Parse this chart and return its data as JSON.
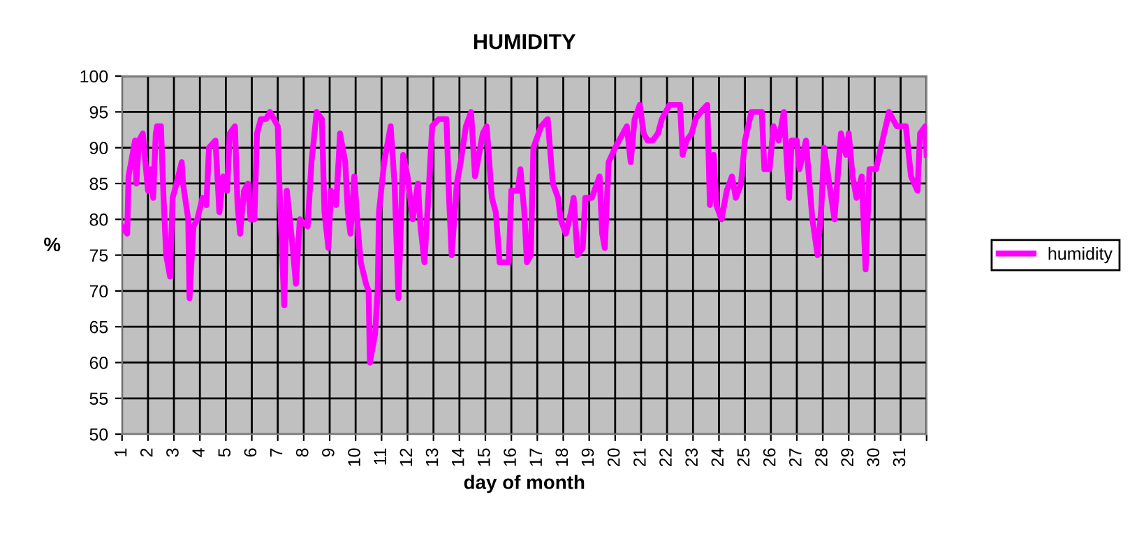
{
  "chart_data": {
    "type": "line",
    "title": "HUMIDITY",
    "xlabel": "day of month",
    "ylabel": "%",
    "xlim": [
      1,
      32
    ],
    "xticks": [
      1,
      2,
      3,
      4,
      5,
      6,
      7,
      8,
      9,
      10,
      11,
      12,
      13,
      14,
      15,
      16,
      17,
      18,
      19,
      20,
      21,
      22,
      23,
      24,
      25,
      26,
      27,
      28,
      29,
      30,
      31,
      {
        "value": 32,
        "label": null
      }
    ],
    "ylim": [
      50,
      100
    ],
    "yticks": [
      50,
      55,
      60,
      65,
      70,
      75,
      80,
      85,
      90,
      95,
      100
    ],
    "grid": true,
    "legend": "right",
    "marker": "none",
    "line_style": "solid",
    "series": [
      {
        "name": "humidity",
        "color": "#ff00ff",
        "x": [
          1.0,
          1.2,
          1.25,
          1.4,
          1.5,
          1.55,
          1.65,
          1.8,
          1.9,
          2.0,
          2.1,
          2.2,
          2.3,
          2.35,
          2.5,
          2.6,
          2.7,
          2.85,
          2.95,
          3.1,
          3.3,
          3.35,
          3.55,
          3.6,
          3.75,
          3.9,
          4.1,
          4.25,
          4.35,
          4.6,
          4.75,
          4.9,
          5.05,
          5.15,
          5.35,
          5.45,
          5.55,
          5.7,
          5.85,
          5.95,
          6.1,
          6.2,
          6.35,
          6.55,
          6.7,
          7.0,
          7.05,
          7.25,
          7.35,
          7.55,
          7.7,
          7.85,
          8.15,
          8.3,
          8.5,
          8.7,
          8.8,
          8.95,
          9.05,
          9.25,
          9.4,
          9.6,
          9.7,
          9.8,
          9.95,
          10.1,
          10.2,
          10.4,
          10.5,
          10.55,
          10.75,
          10.85,
          10.9,
          11.1,
          11.35,
          11.5,
          11.65,
          11.83,
          12.0,
          12.2,
          12.4,
          12.5,
          12.65,
          12.8,
          12.95,
          13.2,
          13.5,
          13.6,
          13.7,
          13.9,
          14.05,
          14.25,
          14.45,
          14.6,
          14.7,
          14.9,
          15.05,
          15.25,
          15.4,
          15.55,
          15.9,
          16.0,
          16.25,
          16.35,
          16.5,
          16.6,
          16.75,
          16.85,
          17.15,
          17.4,
          17.6,
          17.8,
          17.9,
          18.1,
          18.3,
          18.4,
          18.55,
          18.75,
          18.85,
          19.1,
          19.4,
          19.5,
          19.6,
          19.75,
          20.0,
          20.3,
          20.45,
          20.6,
          20.75,
          20.95,
          21.1,
          21.25,
          21.45,
          21.65,
          21.8,
          22.1,
          22.5,
          22.6,
          22.75,
          22.95,
          23.1,
          23.3,
          23.55,
          23.65,
          23.8,
          23.9,
          24.1,
          24.3,
          24.5,
          24.65,
          24.85,
          25.0,
          25.25,
          25.65,
          25.75,
          25.95,
          26.1,
          26.3,
          26.5,
          26.7,
          26.8,
          27.0,
          27.1,
          27.35,
          27.6,
          27.8,
          27.95,
          28.05,
          28.25,
          28.45,
          28.7,
          28.9,
          29.0,
          29.15,
          29.3,
          29.5,
          29.65,
          29.8,
          30.05,
          30.3,
          30.55,
          30.85,
          31.2,
          31.4,
          31.65,
          31.75,
          31.95,
          32.0
        ],
        "values": [
          79,
          78,
          86,
          89,
          91,
          85,
          91,
          92,
          88,
          84,
          87,
          83,
          92,
          93,
          93,
          83,
          75,
          72,
          83,
          85,
          88,
          85,
          80,
          69,
          79,
          80,
          83,
          82,
          90,
          91,
          81,
          86,
          84,
          92,
          93,
          82,
          78,
          84,
          85,
          80,
          80,
          92,
          94,
          94,
          95,
          93,
          86,
          68,
          84,
          77,
          71,
          80,
          79,
          88,
          95,
          94,
          81,
          76,
          84,
          82,
          92,
          88,
          81,
          78,
          86,
          78,
          74,
          71,
          70,
          60,
          64,
          70,
          81,
          88,
          93,
          85,
          69,
          89,
          86,
          80,
          85,
          79,
          74,
          83,
          93,
          94,
          94,
          83,
          75,
          85,
          88,
          93,
          95,
          86,
          88,
          92,
          93,
          83,
          81,
          74,
          74,
          84,
          84,
          87,
          81,
          74,
          75,
          90,
          93,
          94,
          85,
          83,
          80,
          78,
          81,
          83,
          75,
          76,
          83,
          83,
          86,
          78,
          76,
          88,
          90,
          92,
          93,
          88,
          94,
          96,
          92,
          91,
          91,
          92,
          94,
          96,
          96,
          89,
          91,
          92,
          94,
          95,
          96,
          82,
          89,
          82,
          80,
          84,
          86,
          83,
          85,
          91,
          95,
          95,
          87,
          87,
          93,
          91,
          95,
          83,
          91,
          91,
          87,
          91,
          80,
          75,
          82,
          90,
          85,
          80,
          92,
          89,
          92,
          86,
          83,
          86,
          73,
          87,
          87,
          91,
          95,
          93,
          93,
          86,
          84,
          92,
          93,
          89
        ]
      }
    ]
  }
}
